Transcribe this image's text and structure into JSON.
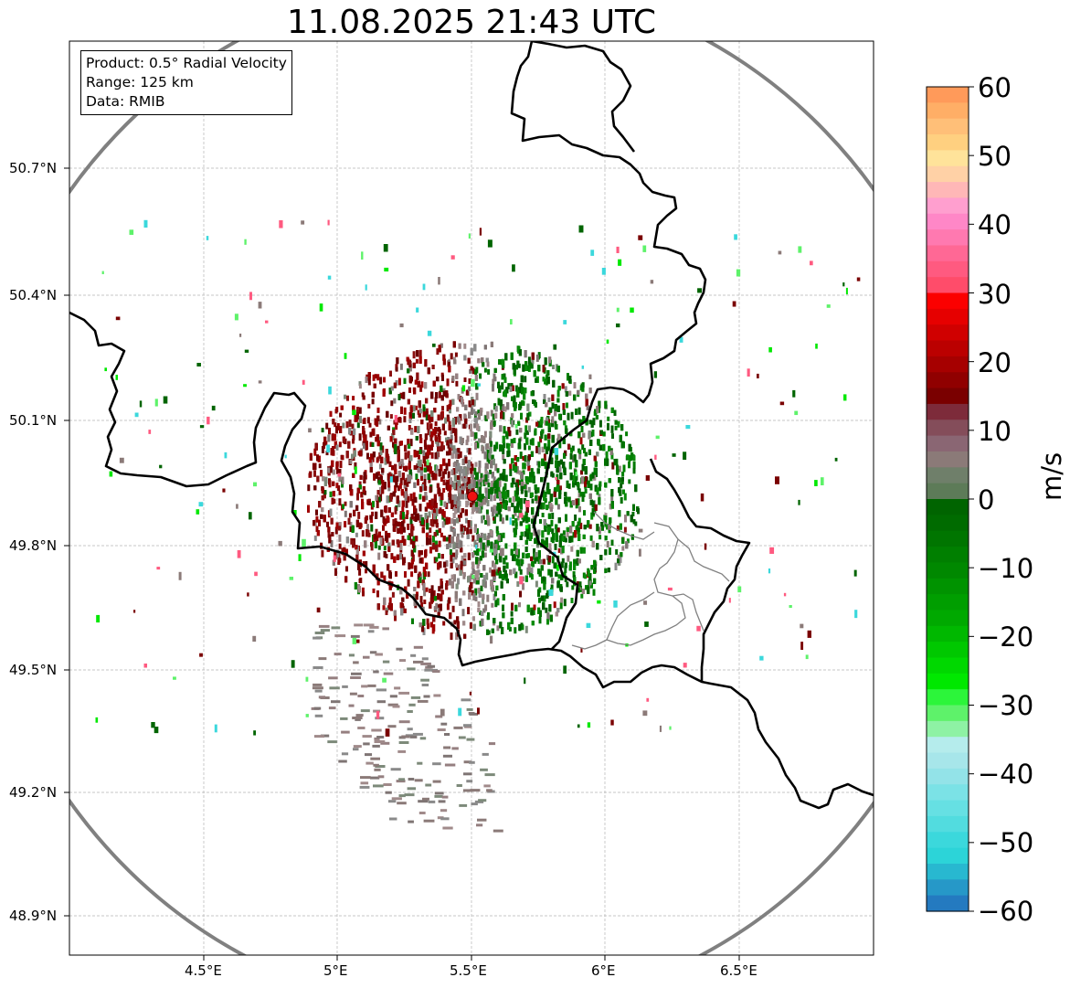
{
  "title": "11.08.2025 21:43 UTC",
  "info": {
    "product": "Product: 0.5° Radial Velocity",
    "range": "Range: 125 km",
    "source": "Data: RMIB"
  },
  "axes": {
    "lat_ticks": [
      "50.7°N",
      "50.4°N",
      "50.1°N",
      "49.8°N",
      "49.5°N",
      "49.2°N",
      "48.9°N"
    ],
    "lon_ticks": [
      "4.5°E",
      "5°E",
      "5.5°E",
      "6°E",
      "6.5°E"
    ]
  },
  "colorbar": {
    "unit": "m/s",
    "ticks": [
      "60",
      "50",
      "40",
      "30",
      "20",
      "10",
      "0",
      "−10",
      "−20",
      "−30",
      "−40",
      "−50",
      "−60"
    ],
    "colors": [
      "#ff9a5a",
      "#ffae66",
      "#ffbf78",
      "#ffd080",
      "#ffe39a",
      "#ffd1a6",
      "#ffb7b7",
      "#ff9fcf",
      "#ff87c7",
      "#ff79b0",
      "#ff6895",
      "#ff5a80",
      "#ff4c6a",
      "#fb0000",
      "#e60000",
      "#d00000",
      "#bb0000",
      "#a60000",
      "#900000",
      "#7a0000",
      "#7d2b3a",
      "#844d5a",
      "#8a6673",
      "#8b7a78",
      "#6f7f6a",
      "#5d7b58",
      "#006400",
      "#006b00",
      "#007500",
      "#007f00",
      "#008800",
      "#009300",
      "#009e00",
      "#00a900",
      "#00b800",
      "#00c800",
      "#00d800",
      "#00e800",
      "#2cf53a",
      "#5ef26a",
      "#8ef2a4",
      "#b5ecec",
      "#a7e6ea",
      "#93e3e8",
      "#7be2e6",
      "#66e0e3",
      "#52dcdf",
      "#3bd8dc",
      "#2cd4d8",
      "#28b8d0",
      "#2698c8",
      "#247ac0"
    ]
  },
  "radar_site": {
    "name": "radar-site",
    "lon": 5.51,
    "lat": 49.91
  }
}
